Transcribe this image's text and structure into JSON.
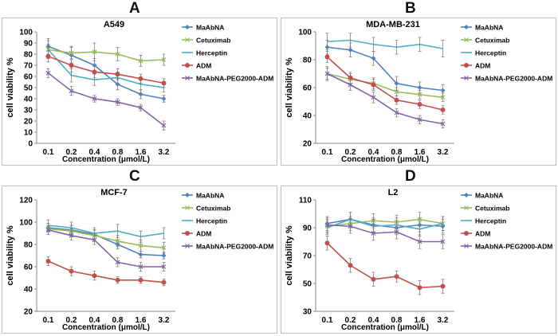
{
  "panel_letters": [
    "A",
    "B",
    "C",
    "D"
  ],
  "colors": {
    "MaAbNA": "#4f81bd",
    "Cetuximab": "#9bbb59",
    "Herceptin": "#4bacc6",
    "ADM": "#c0504d",
    "MaAbNA-PEG2000-ADM": "#8064a2",
    "frame": "#bfbfbf",
    "text": "#000000"
  },
  "chart_data": [
    {
      "type": "line",
      "panel": "A",
      "title": "A549",
      "xlabel": "Concentration (μmol/L)",
      "ylabel": "cell viability %",
      "categories": [
        "0.1",
        "0.2",
        "0.4",
        "0.8",
        "1.6",
        "3.2"
      ],
      "ylim": [
        0,
        100
      ],
      "yticks": [
        0,
        10,
        20,
        30,
        40,
        50,
        60,
        70,
        80,
        90,
        100
      ],
      "grid": false,
      "legend": "right",
      "error_bars": true,
      "series": [
        {
          "name": "MaAbNA",
          "marker": "diamond",
          "values": [
            87,
            79,
            70,
            53,
            44,
            40
          ],
          "errors": [
            7,
            7,
            6,
            5,
            4,
            3
          ]
        },
        {
          "name": "Cetuximab",
          "marker": "x",
          "values": [
            84,
            81,
            82,
            80,
            74,
            75
          ],
          "errors": [
            5,
            6,
            8,
            6,
            5,
            5
          ]
        },
        {
          "name": "Herceptin",
          "marker": "none",
          "values": [
            84,
            61,
            57,
            59,
            53,
            50
          ],
          "errors": [
            8,
            6,
            5,
            5,
            5,
            4
          ]
        },
        {
          "name": "ADM",
          "marker": "circle",
          "values": [
            78,
            70,
            64,
            62,
            58,
            54
          ],
          "errors": [
            5,
            6,
            5,
            5,
            4,
            4
          ]
        },
        {
          "name": "MaAbNA-PEG2000-ADM",
          "marker": "x",
          "values": [
            63,
            47,
            40,
            37,
            32,
            16
          ],
          "errors": [
            4,
            4,
            3,
            3,
            3,
            4
          ]
        }
      ]
    },
    {
      "type": "line",
      "panel": "B",
      "title": "MDA-MB-231",
      "xlabel": "Concentration (μmol/L)",
      "ylabel": "cell viability %",
      "categories": [
        "0.1",
        "0.2",
        "0.4",
        "0.8",
        "1.6",
        "3.2"
      ],
      "ylim": [
        20,
        100
      ],
      "yticks": [
        20,
        40,
        60,
        80,
        100
      ],
      "grid": false,
      "legend": "right",
      "error_bars": true,
      "series": [
        {
          "name": "MaAbNA",
          "marker": "diamond",
          "values": [
            89,
            87,
            81,
            63,
            60,
            58
          ],
          "errors": [
            5,
            5,
            5,
            5,
            4,
            4
          ]
        },
        {
          "name": "Cetuximab",
          "marker": "x",
          "values": [
            70,
            66,
            63,
            57,
            55,
            53
          ],
          "errors": [
            5,
            4,
            4,
            3,
            3,
            3
          ]
        },
        {
          "name": "Herceptin",
          "marker": "none",
          "values": [
            93,
            94,
            91,
            89,
            91,
            88
          ],
          "errors": [
            6,
            5,
            5,
            5,
            5,
            6
          ]
        },
        {
          "name": "ADM",
          "marker": "circle",
          "values": [
            82,
            67,
            62,
            51,
            48,
            44
          ],
          "errors": [
            4,
            4,
            4,
            3,
            3,
            3
          ]
        },
        {
          "name": "MaAbNA-PEG2000-ADM",
          "marker": "x",
          "values": [
            70,
            62,
            53,
            42,
            37,
            34
          ],
          "errors": [
            4,
            4,
            4,
            3,
            3,
            3
          ]
        }
      ]
    },
    {
      "type": "line",
      "panel": "C",
      "title": "MCF-7",
      "xlabel": "Concentration (μmol/L)",
      "ylabel": "cell viability %",
      "categories": [
        "0.1",
        "0.2",
        "0.4",
        "0.8",
        "1.6",
        "3.2"
      ],
      "ylim": [
        20,
        120
      ],
      "yticks": [
        20,
        40,
        60,
        80,
        100,
        120
      ],
      "grid": false,
      "legend": "right",
      "error_bars": true,
      "series": [
        {
          "name": "MaAbNA",
          "marker": "diamond",
          "values": [
            95,
            93,
            89,
            80,
            71,
            70
          ],
          "errors": [
            4,
            4,
            4,
            4,
            3,
            3
          ]
        },
        {
          "name": "Cetuximab",
          "marker": "x",
          "values": [
            94,
            92,
            88,
            83,
            79,
            77
          ],
          "errors": [
            5,
            5,
            5,
            5,
            5,
            5
          ]
        },
        {
          "name": "Herceptin",
          "marker": "none",
          "values": [
            97,
            95,
            90,
            92,
            87,
            90
          ],
          "errors": [
            5,
            5,
            5,
            6,
            5,
            5
          ]
        },
        {
          "name": "ADM",
          "marker": "circle",
          "values": [
            65,
            56,
            52,
            48,
            48,
            46
          ],
          "errors": [
            4,
            4,
            4,
            3,
            3,
            3
          ]
        },
        {
          "name": "MaAbNA-PEG2000-ADM",
          "marker": "x",
          "values": [
            93,
            88,
            84,
            64,
            60,
            60
          ],
          "errors": [
            4,
            4,
            4,
            4,
            4,
            4
          ]
        }
      ]
    },
    {
      "type": "line",
      "panel": "D",
      "title": "L2",
      "xlabel": "Concentration (μmol/L)",
      "ylabel": "cell viability %",
      "categories": [
        "0.1",
        "0.2",
        "0.4",
        "0.8",
        "1.6",
        "3.2"
      ],
      "ylim": [
        30,
        110
      ],
      "yticks": [
        30,
        50,
        70,
        90,
        110
      ],
      "grid": false,
      "legend": "right",
      "error_bars": true,
      "series": [
        {
          "name": "MaAbNA",
          "marker": "diamond",
          "values": [
            93,
            96,
            92,
            90,
            92,
            91
          ],
          "errors": [
            5,
            5,
            5,
            5,
            5,
            5
          ]
        },
        {
          "name": "Cetuximab",
          "marker": "x",
          "values": [
            91,
            93,
            95,
            94,
            96,
            93
          ],
          "errors": [
            5,
            5,
            5,
            5,
            5,
            5
          ]
        },
        {
          "name": "Herceptin",
          "marker": "none",
          "values": [
            90,
            96,
            91,
            92,
            89,
            93
          ],
          "errors": [
            5,
            5,
            5,
            5,
            5,
            5
          ]
        },
        {
          "name": "ADM",
          "marker": "circle",
          "values": [
            79,
            63,
            53,
            55,
            47,
            48
          ],
          "errors": [
            5,
            5,
            5,
            4,
            5,
            5
          ]
        },
        {
          "name": "MaAbNA-PEG2000-ADM",
          "marker": "x",
          "values": [
            92,
            91,
            86,
            87,
            80,
            80
          ],
          "errors": [
            5,
            5,
            5,
            5,
            5,
            5
          ]
        }
      ]
    }
  ]
}
